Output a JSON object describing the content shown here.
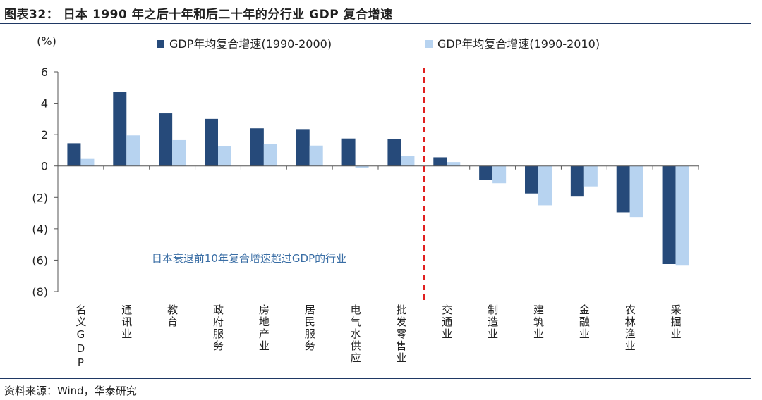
{
  "header": {
    "title": "图表32： 日本 1990 年之后十年和后二十年的分行业 GDP 复合增速"
  },
  "footer": {
    "source": "资料来源：Wind，华泰研究"
  },
  "chart_data": {
    "type": "bar",
    "unit_label": "(%)",
    "categories": [
      "名义GDP",
      "通讯业",
      "教育",
      "政府服务",
      "房地产业",
      "居民服务",
      "电气水供应",
      "批发零售业",
      "交通业",
      "制造业",
      "建筑业",
      "金融业",
      "农林渔业",
      "采掘业"
    ],
    "series": [
      {
        "name": "GDP年均复合增速(1990-2000)",
        "color": "#264a7a",
        "values": [
          1.45,
          4.7,
          3.35,
          3.0,
          2.4,
          2.35,
          1.75,
          1.7,
          0.55,
          -0.9,
          -1.75,
          -1.95,
          -2.95,
          -6.25
        ]
      },
      {
        "name": "GDP年均复合增速(1990-2010)",
        "color": "#b7d3f0",
        "values": [
          0.45,
          1.95,
          1.65,
          1.25,
          1.4,
          1.3,
          -0.1,
          0.65,
          0.25,
          -1.1,
          -2.5,
          -1.3,
          -3.25,
          -6.35
        ]
      }
    ],
    "ylim": [
      -8,
      6
    ],
    "yticks": [
      6,
      4,
      2,
      0,
      -2,
      -4,
      -6,
      -8
    ],
    "ytick_labels": [
      "6",
      "4",
      "2",
      "0",
      "(2)",
      "(4)",
      "(6)",
      "(8)"
    ],
    "divider_after_category": 8,
    "divider_color": "#e02020",
    "annotation": "日本衰退前10年复合增速超过GDP的行业",
    "annotation_color": "#3a6ea5",
    "legend_position": "top",
    "grid": false
  }
}
